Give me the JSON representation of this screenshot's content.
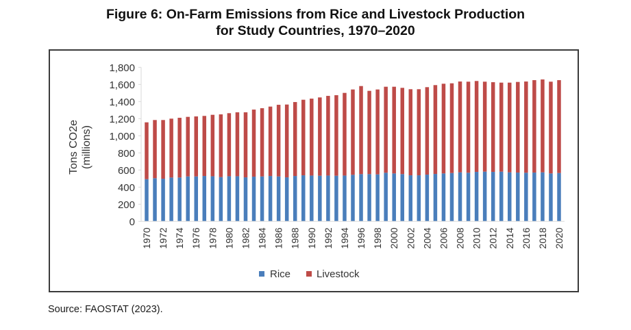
{
  "figure": {
    "title_line1": "Figure 6: On-Farm Emissions from Rice and Livestock Production",
    "title_line2": "for Study Countries, 1970–2020",
    "source": "Source: FAOSTAT (2023)."
  },
  "chart_data": {
    "type": "bar",
    "stacked": true,
    "title": "Figure 6: On-Farm Emissions from Rice and Livestock Production for Study Countries, 1970–2020",
    "xlabel": "",
    "ylabel_line1": "Tons CO2e",
    "ylabel_line2": "(millions)",
    "ylim": [
      0,
      1800
    ],
    "yticks": [
      0,
      200,
      400,
      600,
      800,
      1000,
      1200,
      1400,
      1600,
      1800
    ],
    "ytick_labels": [
      "0",
      "200",
      "400",
      "600",
      "800",
      "1,000",
      "1,200",
      "1,400",
      "1,600",
      "1,800"
    ],
    "grid": false,
    "legend_position": "bottom",
    "x_label_every": 2,
    "categories": [
      1970,
      1971,
      1972,
      1973,
      1974,
      1975,
      1976,
      1977,
      1978,
      1979,
      1980,
      1981,
      1982,
      1983,
      1984,
      1985,
      1986,
      1987,
      1988,
      1989,
      1990,
      1991,
      1992,
      1993,
      1994,
      1995,
      1996,
      1997,
      1998,
      1999,
      2000,
      2001,
      2002,
      2003,
      2004,
      2005,
      2006,
      2007,
      2008,
      2009,
      2010,
      2011,
      2012,
      2013,
      2014,
      2015,
      2016,
      2017,
      2018,
      2019,
      2020
    ],
    "series": [
      {
        "name": "Rice",
        "color": "#4a7ebb",
        "values": [
          493,
          504,
          498,
          512,
          512,
          525,
          525,
          530,
          527,
          517,
          527,
          527,
          514,
          522,
          525,
          530,
          525,
          514,
          530,
          538,
          535,
          533,
          535,
          533,
          535,
          544,
          552,
          552,
          549,
          568,
          560,
          552,
          538,
          538,
          546,
          554,
          560,
          565,
          573,
          568,
          578,
          581,
          578,
          581,
          573,
          570,
          568,
          570,
          573,
          560,
          565
        ]
      },
      {
        "name": "Livestock",
        "color": "#be4b48",
        "values": [
          664,
          680,
          686,
          688,
          698,
          696,
          701,
          702,
          718,
          733,
          737,
          747,
          760,
          784,
          797,
          811,
          837,
          851,
          864,
          883,
          899,
          915,
          931,
          941,
          966,
          997,
          1029,
          973,
          992,
          1005,
          1013,
          1008,
          1006,
          1006,
          1022,
          1038,
          1048,
          1048,
          1061,
          1064,
          1062,
          1051,
          1048,
          1040,
          1048,
          1059,
          1066,
          1080,
          1085,
          1072,
          1085
        ]
      }
    ],
    "totals": [
      1157,
      1184,
      1184,
      1200,
      1210,
      1221,
      1226,
      1232,
      1245,
      1250,
      1264,
      1274,
      1274,
      1306,
      1322,
      1341,
      1362,
      1365,
      1394,
      1421,
      1434,
      1448,
      1466,
      1474,
      1501,
      1541,
      1581,
      1525,
      1541,
      1573,
      1573,
      1560,
      1544,
      1544,
      1568,
      1592,
      1608,
      1613,
      1634,
      1632,
      1640,
      1632,
      1626,
      1621,
      1621,
      1629,
      1634,
      1650,
      1658,
      1632,
      1650
    ]
  }
}
